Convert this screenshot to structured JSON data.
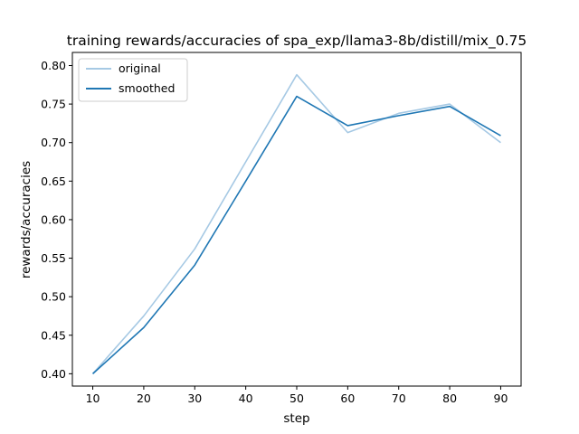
{
  "chart_data": {
    "type": "line",
    "title": "training rewards/accuracies of spa_exp/llama3-8b/distill/mix_0.75",
    "xlabel": "step",
    "ylabel": "rewards/accuracies",
    "x": [
      10,
      20,
      30,
      40,
      50,
      60,
      70,
      80,
      90
    ],
    "xlim": [
      6,
      94
    ],
    "ylim": [
      0.384,
      0.817
    ],
    "xticks": [
      "10",
      "20",
      "30",
      "40",
      "50",
      "60",
      "70",
      "80",
      "90"
    ],
    "yticks": [
      "0.40",
      "0.45",
      "0.50",
      "0.55",
      "0.60",
      "0.65",
      "0.70",
      "0.75",
      "0.80"
    ],
    "grid": false,
    "legend_position": "upper-left",
    "series": [
      {
        "name": "original",
        "color": "#a6c9e4",
        "values": [
          0.4,
          0.475,
          0.562,
          0.675,
          0.788,
          0.713,
          0.738,
          0.75,
          0.7
        ]
      },
      {
        "name": "smoothed",
        "color": "#1f77b4",
        "values": [
          0.4,
          0.46,
          0.541,
          0.65,
          0.76,
          0.722,
          0.735,
          0.747,
          0.709
        ]
      }
    ]
  }
}
